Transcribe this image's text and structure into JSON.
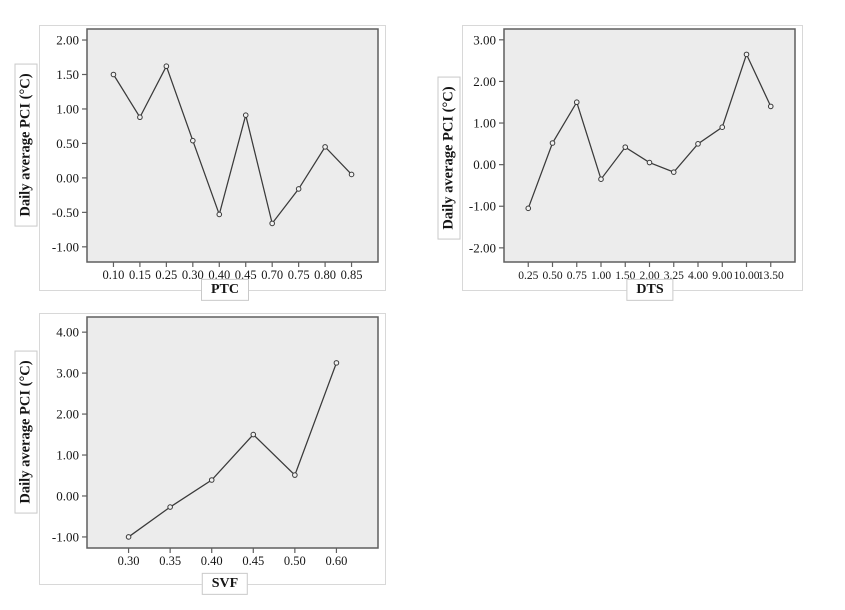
{
  "figure": {
    "description": "Three single-series line charts of daily average PCI versus PTC, DTS and SVF",
    "background": "#ffffff",
    "panel_count": 3
  },
  "colors": {
    "plot_background": "#ececec",
    "plot_border": "#5f5f5f",
    "line": "#3a3a3a",
    "marker_fill": "#f2f2f2",
    "tick": "#5f5f5f",
    "text": "#161616",
    "frame_border": "#d8d8d8",
    "axis_box_border": "#c9c9c9"
  },
  "chart_data": [
    {
      "id": "ptc",
      "type": "line",
      "title": "",
      "xlabel": "PTC",
      "ylabel": "Daily average PCI (°C)",
      "categories": [
        "0.10",
        "0.15",
        "0.25",
        "0.30",
        "0.40",
        "0.45",
        "0.70",
        "0.75",
        "0.80",
        "0.85"
      ],
      "values": [
        1.5,
        0.88,
        1.62,
        0.54,
        -0.53,
        0.91,
        -0.66,
        -0.16,
        0.45,
        0.05
      ],
      "yticks": [
        -1.0,
        -0.5,
        0.0,
        0.5,
        1.0,
        1.5,
        2.0
      ],
      "ytick_labels": [
        "-1.00",
        "-0.50",
        "0.00",
        "0.50",
        "1.00",
        "1.50",
        "2.00"
      ],
      "ylim": [
        -1.22,
        2.16
      ],
      "marker": "open-circle",
      "grid": false,
      "legend": "none"
    },
    {
      "id": "dts",
      "type": "line",
      "title": "",
      "xlabel": "DTS",
      "ylabel": "Daily average PCI (°C)",
      "categories": [
        "0.25",
        "0.50",
        "0.75",
        "1.00",
        "1.50",
        "2.00",
        "3.25",
        "4.00",
        "9.00",
        "10.00",
        "13.50"
      ],
      "values": [
        -1.05,
        0.52,
        1.5,
        -0.35,
        0.42,
        0.05,
        -0.18,
        0.5,
        0.9,
        2.65,
        1.4
      ],
      "yticks": [
        -2.0,
        -1.0,
        0.0,
        1.0,
        2.0,
        3.0
      ],
      "ytick_labels": [
        "-2.00",
        "-1.00",
        "0.00",
        "1.00",
        "2.00",
        "3.00"
      ],
      "ylim": [
        -2.34,
        3.26
      ],
      "marker": "open-circle",
      "grid": false,
      "legend": "none"
    },
    {
      "id": "svf",
      "type": "line",
      "title": "",
      "xlabel": "SVF",
      "ylabel": "Daily average PCI (°C)",
      "categories": [
        "0.30",
        "0.35",
        "0.40",
        "0.45",
        "0.50",
        "0.60"
      ],
      "values": [
        -1.0,
        -0.27,
        0.39,
        1.5,
        0.51,
        3.25
      ],
      "yticks": [
        -1.0,
        0.0,
        1.0,
        2.0,
        3.0,
        4.0
      ],
      "ytick_labels": [
        "-1.00",
        "0.00",
        "1.00",
        "2.00",
        "3.00",
        "4.00"
      ],
      "ylim": [
        -1.27,
        4.37
      ],
      "marker": "open-circle",
      "grid": false,
      "legend": "none"
    }
  ]
}
